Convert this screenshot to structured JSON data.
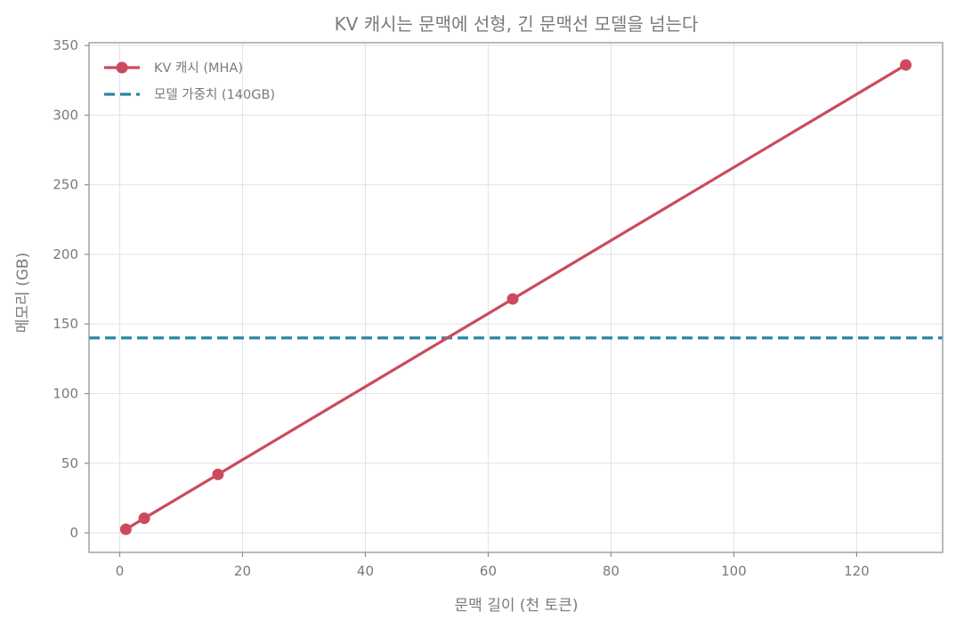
{
  "chart_data": {
    "type": "line",
    "title": "KV 캐시는 문맥에 선형, 긴 문맥선 모델을 넘는다",
    "xlabel": "문맥 길이 (천 토큰)",
    "ylabel": "메모리 (GB)",
    "xlim": [
      -5,
      134
    ],
    "ylim": [
      -14,
      352
    ],
    "xticks": [
      0,
      20,
      40,
      60,
      80,
      100,
      120
    ],
    "yticks": [
      0,
      50,
      100,
      150,
      200,
      250,
      300,
      350
    ],
    "grid": true,
    "legend_position": "top-left",
    "series": [
      {
        "name": "KV 캐시 (MHA)",
        "style": "line-marker",
        "color": "#cc4a5e",
        "x": [
          1,
          4,
          16,
          64,
          128
        ],
        "y": [
          2.6,
          10.5,
          42,
          168,
          336
        ]
      }
    ],
    "reference_lines": [
      {
        "name": "모델 가중치 (140GB)",
        "orientation": "horizontal",
        "value": 140,
        "style": "dashed",
        "color": "#2a85aa"
      }
    ]
  }
}
